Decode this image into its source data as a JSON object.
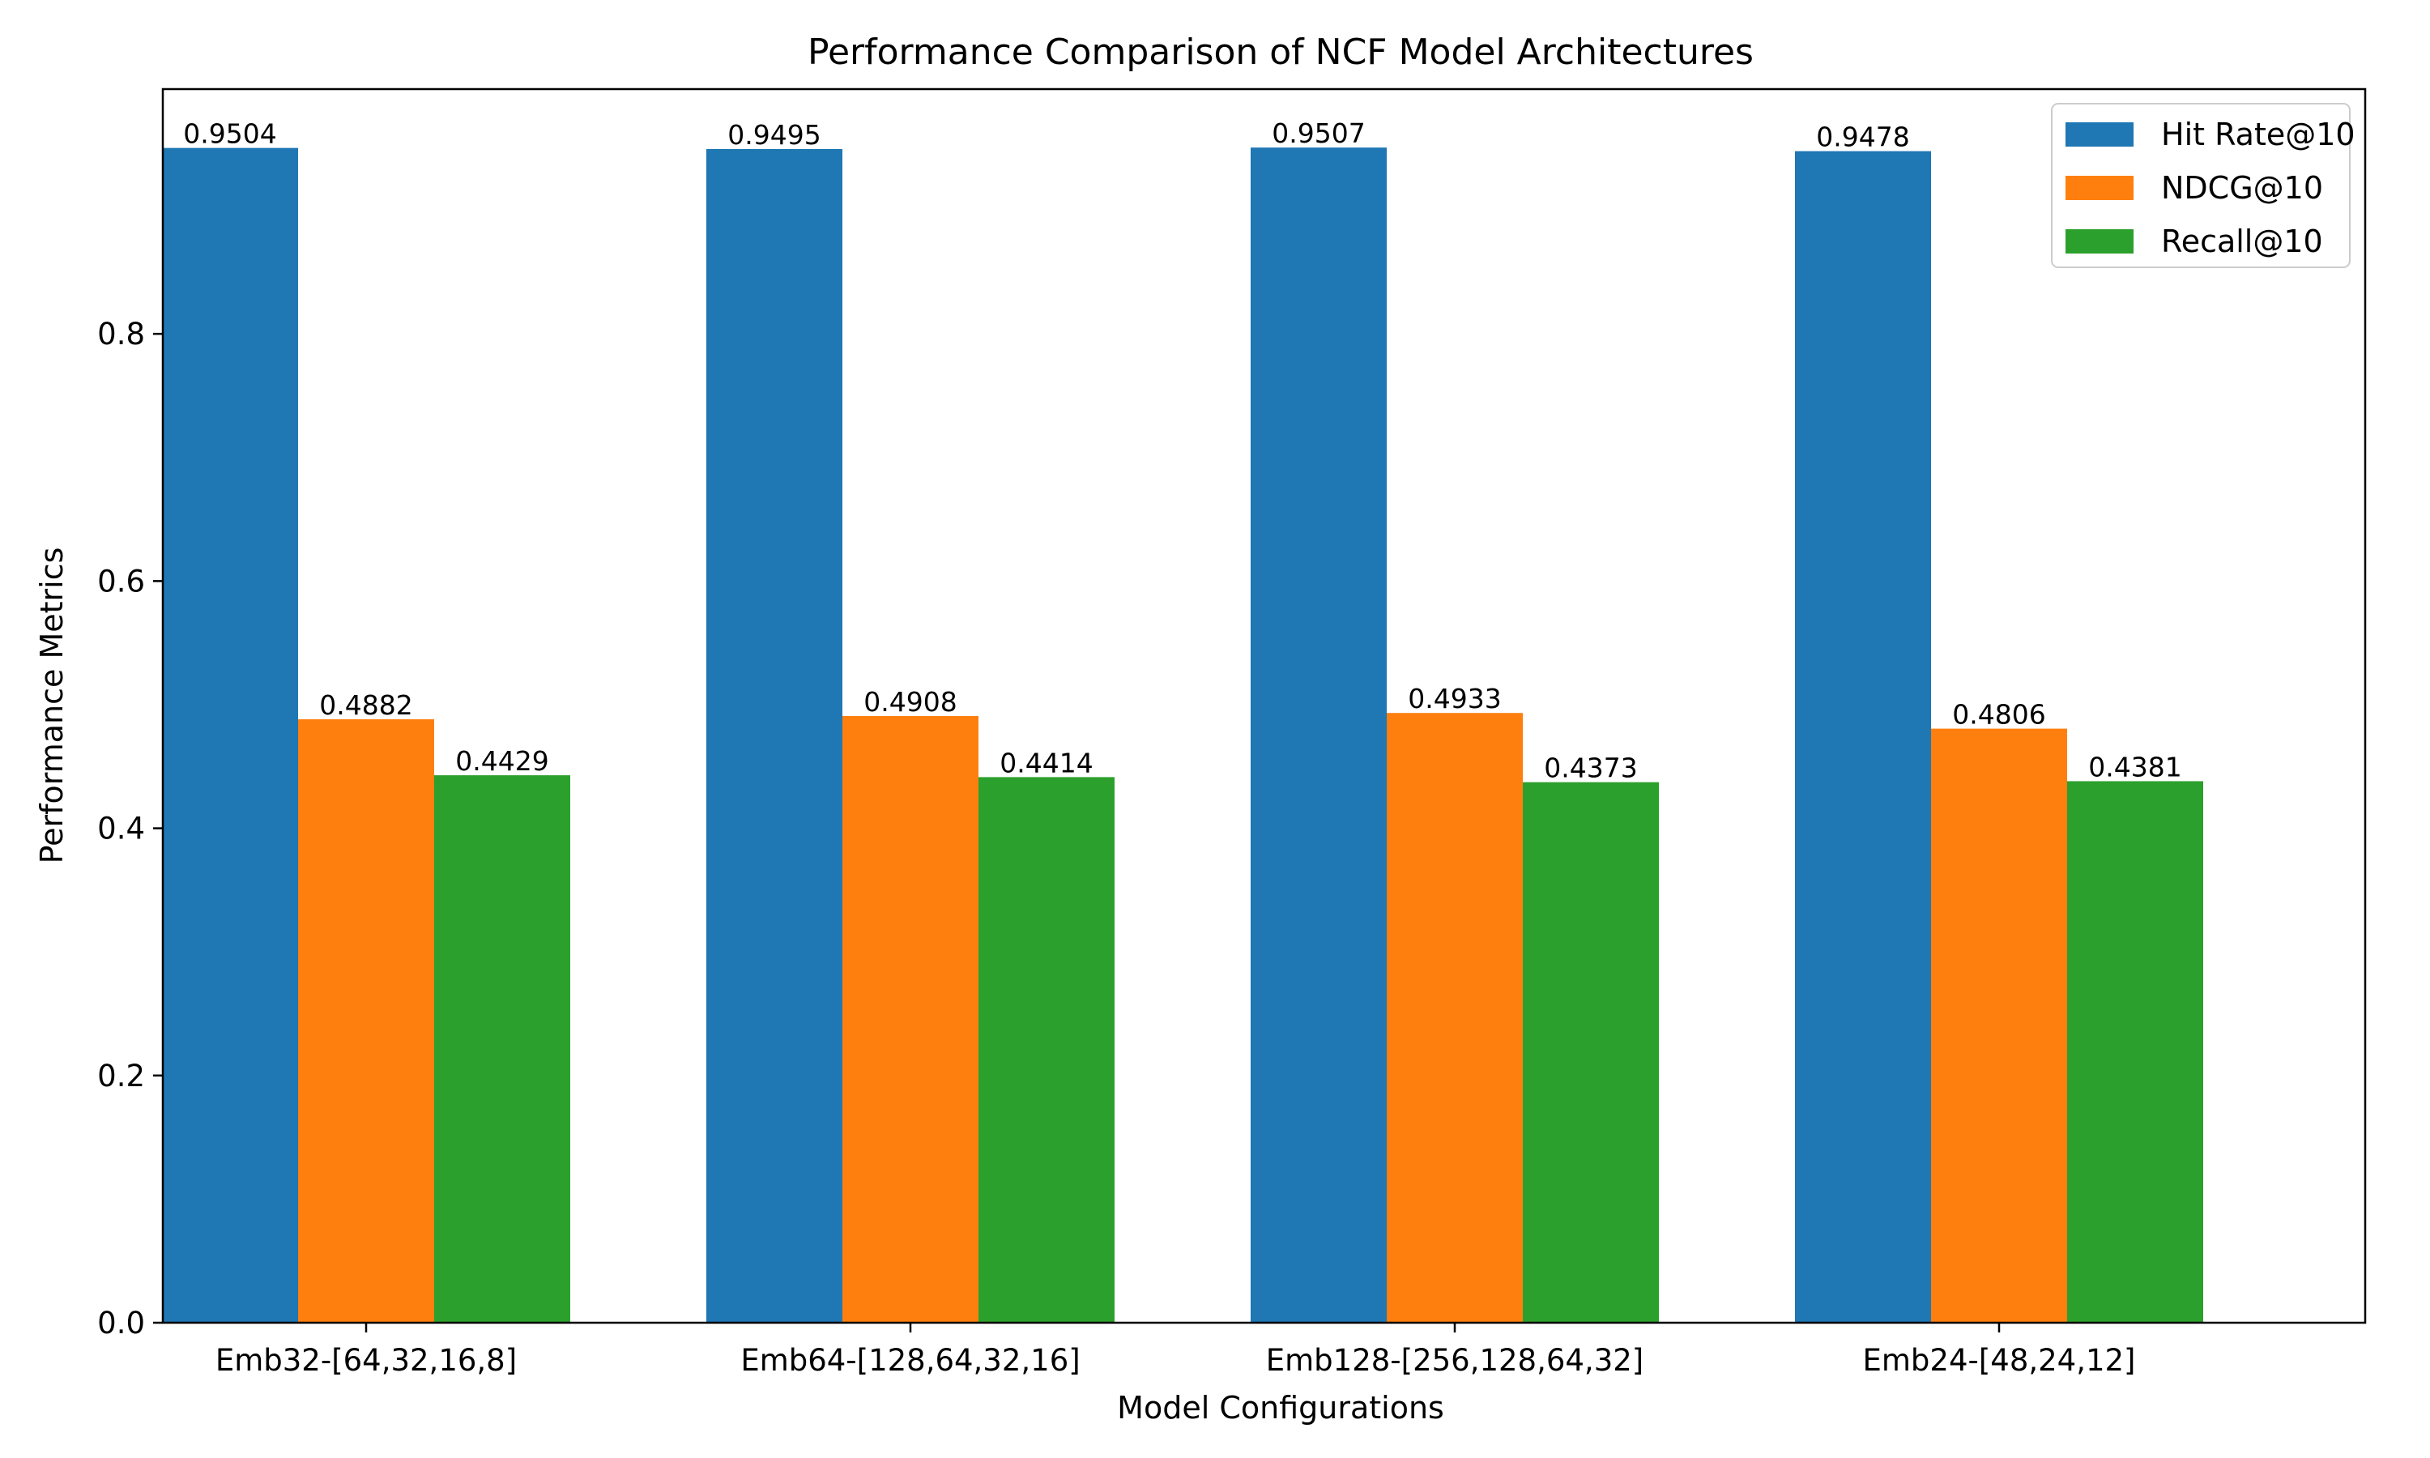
{
  "chart_data": {
    "type": "bar",
    "title": "Performance Comparison of NCF Model Architectures",
    "xlabel": "Model Configurations",
    "ylabel": "Performance Metrics",
    "categories": [
      "Emb32-[64,32,16,8]",
      "Emb64-[128,64,32,16]",
      "Emb128-[256,128,64,32]",
      "Emb24-[48,24,12]"
    ],
    "series": [
      {
        "name": "Hit Rate@10",
        "color": "#1f77b4",
        "values": [
          0.9504,
          0.9495,
          0.9507,
          0.9478
        ],
        "labels": [
          "0.9504",
          "0.9495",
          "0.9507",
          "0.9478"
        ]
      },
      {
        "name": "NDCG@10",
        "color": "#ff7f0e",
        "values": [
          0.4882,
          0.4908,
          0.4933,
          0.4806
        ],
        "labels": [
          "0.4882",
          "0.4908",
          "0.4933",
          "0.4806"
        ]
      },
      {
        "name": "Recall@10",
        "color": "#2ca02c",
        "values": [
          0.4429,
          0.4414,
          0.4373,
          0.4381
        ],
        "labels": [
          "0.4429",
          "0.4414",
          "0.4373",
          "0.4381"
        ]
      }
    ],
    "ylim": [
      0,
      0.998
    ],
    "yticks": [
      0.0,
      0.2,
      0.4,
      0.6,
      0.8
    ],
    "ytick_labels": [
      "0.0",
      "0.2",
      "0.4",
      "0.6",
      "0.8"
    ],
    "grid": false,
    "legend_position": "top-right"
  }
}
